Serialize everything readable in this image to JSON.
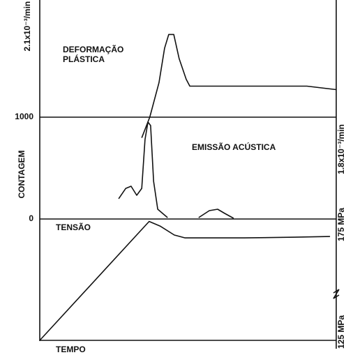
{
  "chart_data": [
    {
      "type": "line",
      "annotation": [
        "DEFORMAÇÃO",
        "PLÁSTICA"
      ],
      "x": [
        34.4,
        37.1,
        40.2,
        42.1,
        43.5,
        45.2,
        47,
        49.4,
        50.6,
        57.2,
        76,
        90.1,
        100
      ],
      "values": [
        1.74,
        1.8,
        1.9,
        2.0,
        2.04,
        2.04,
        1.97,
        1.91,
        1.89,
        1.89,
        1.89,
        1.89,
        1.88
      ],
      "xlim": [
        0,
        100
      ],
      "ylim": [
        1.8,
        2.14
      ],
      "yticks": [
        {
          "value": 2.1,
          "label": "2.1x10⁻³/min"
        },
        {
          "value": 1.8,
          "label": "1.8x10⁻³/min"
        }
      ]
    },
    {
      "type": "line",
      "annotation": [
        "EMISSÃO ACÚSTICA"
      ],
      "ylabel": "CONTAGEM",
      "x": [
        26.6,
        29,
        30.8,
        32.7,
        34.4,
        35.5,
        36.5,
        37.4,
        38.4,
        39.8,
        43.1,
        null,
        53.6,
        57.2,
        60,
        62.4,
        65.4
      ],
      "values": [
        199,
        301,
        322,
        233,
        301,
        781,
        952,
        918,
        370,
        96,
        14,
        null,
        14,
        82,
        96,
        55,
        7
      ],
      "xlim": [
        0,
        100
      ],
      "ylim": [
        0,
        1000
      ],
      "yticks": [
        0,
        1000
      ]
    },
    {
      "type": "line",
      "annotation": [
        "TENSÃO"
      ],
      "xlabel": "TEMPO",
      "x": [
        0,
        36.9,
        40.7,
        45.4,
        49,
        69,
        86,
        97.9
      ],
      "values": [
        125,
        174,
        172,
        168.4,
        167.2,
        167.2,
        167.5,
        167.8
      ],
      "xlim": [
        0,
        100
      ],
      "ylim": [
        125,
        175
      ],
      "yticks": [
        {
          "value": 175,
          "label": "175 MPa"
        },
        {
          "value": 125,
          "label": "125 MPa"
        }
      ]
    }
  ]
}
